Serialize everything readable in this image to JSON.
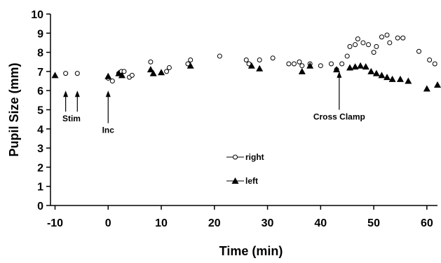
{
  "chart_data": {
    "type": "scatter",
    "xlabel": "Time (min)",
    "ylabel": "Pupil Size (mm)",
    "xlim": [
      -10,
      62
    ],
    "ylim": [
      0,
      10
    ],
    "x_ticks": [
      -10,
      0,
      10,
      20,
      30,
      40,
      50,
      60
    ],
    "y_ticks": [
      0,
      1,
      2,
      3,
      4,
      5,
      6,
      7,
      8,
      9,
      10
    ],
    "grid": false,
    "legend_placement": "center",
    "series": [
      {
        "name": "right",
        "marker": "open-circle",
        "points": [
          [
            -8,
            6.9
          ],
          [
            -5.8,
            6.9
          ],
          [
            0,
            6.65
          ],
          [
            0.8,
            6.5
          ],
          [
            2,
            6.9
          ],
          [
            2.5,
            7.0
          ],
          [
            3,
            7.0
          ],
          [
            4,
            6.7
          ],
          [
            4.5,
            6.8
          ],
          [
            8,
            7.5
          ],
          [
            11,
            7.0
          ],
          [
            11.5,
            7.2
          ],
          [
            15,
            7.4
          ],
          [
            15.5,
            7.6
          ],
          [
            21,
            7.8
          ],
          [
            26,
            7.6
          ],
          [
            26.5,
            7.4
          ],
          [
            28.5,
            7.6
          ],
          [
            31,
            7.7
          ],
          [
            34,
            7.4
          ],
          [
            35,
            7.4
          ],
          [
            36,
            7.5
          ],
          [
            36.5,
            7.3
          ],
          [
            38,
            7.4
          ],
          [
            40,
            7.3
          ],
          [
            42,
            7.4
          ],
          [
            43,
            7.1
          ],
          [
            44,
            7.4
          ],
          [
            45,
            7.8
          ],
          [
            45.5,
            8.3
          ],
          [
            46.5,
            8.4
          ],
          [
            47,
            8.7
          ],
          [
            48,
            8.5
          ],
          [
            49,
            8.4
          ],
          [
            50,
            8.0
          ],
          [
            50.5,
            8.3
          ],
          [
            51.5,
            8.8
          ],
          [
            52.5,
            8.9
          ],
          [
            53,
            8.5
          ],
          [
            54.5,
            8.75
          ],
          [
            55.5,
            8.75
          ],
          [
            58.5,
            8.05
          ],
          [
            60.5,
            7.6
          ],
          [
            61.5,
            7.4
          ]
        ]
      },
      {
        "name": "left",
        "marker": "filled-triangle",
        "points": [
          [
            -10,
            6.8
          ],
          [
            0,
            6.75
          ],
          [
            2,
            6.9
          ],
          [
            2.6,
            6.8
          ],
          [
            8,
            7.1
          ],
          [
            8.5,
            6.9
          ],
          [
            10,
            6.95
          ],
          [
            15.5,
            7.3
          ],
          [
            27,
            7.3
          ],
          [
            28.5,
            7.15
          ],
          [
            36.5,
            7.0
          ],
          [
            38,
            7.3
          ],
          [
            43,
            7.1
          ],
          [
            45.5,
            7.2
          ],
          [
            46.5,
            7.25
          ],
          [
            47.5,
            7.3
          ],
          [
            48.5,
            7.25
          ],
          [
            49.5,
            7.0
          ],
          [
            50.5,
            6.9
          ],
          [
            51.5,
            6.8
          ],
          [
            52.5,
            6.7
          ],
          [
            53.5,
            6.6
          ],
          [
            55,
            6.6
          ],
          [
            56.5,
            6.5
          ],
          [
            60,
            6.1
          ],
          [
            62,
            6.3
          ]
        ]
      }
    ],
    "annotations": [
      {
        "text": "Stim",
        "arrow_x": [
          -8,
          -5.8
        ],
        "arrow_from_y": 4.9,
        "arrow_to_y": 6.0
      },
      {
        "text": "Inc",
        "arrow_x": [
          0
        ],
        "arrow_from_y": 4.3,
        "arrow_to_y": 6.0
      },
      {
        "text": "Cross Clamp",
        "arrow_x": [
          43.5
        ],
        "arrow_from_y": 5.0,
        "arrow_to_y": 7.0
      }
    ],
    "legend": [
      {
        "series": 0,
        "label": "right"
      },
      {
        "series": 1,
        "label": "left"
      }
    ]
  }
}
